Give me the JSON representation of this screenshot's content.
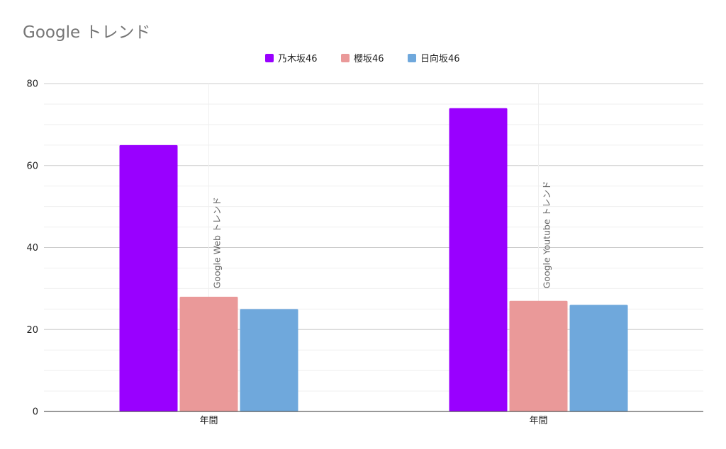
{
  "chart_data": {
    "type": "bar",
    "title": "Google トレンド",
    "xlabel": "",
    "ylabel": "",
    "ylim": [
      0,
      80
    ],
    "yticks": [
      0,
      20,
      40,
      60,
      80
    ],
    "grid": true,
    "legend_position": "top",
    "groups": [
      {
        "category": "年間",
        "label": "Google Web トレンド"
      },
      {
        "category": "年間",
        "label": "Google Youtube トレンド"
      }
    ],
    "series": [
      {
        "name": "乃木坂46",
        "color": "#9900ff",
        "values": [
          65,
          74
        ]
      },
      {
        "name": "櫻坂46",
        "color": "#ea9999",
        "values": [
          28,
          27
        ]
      },
      {
        "name": "日向坂46",
        "color": "#6fa8dc",
        "values": [
          25,
          26
        ]
      }
    ]
  }
}
